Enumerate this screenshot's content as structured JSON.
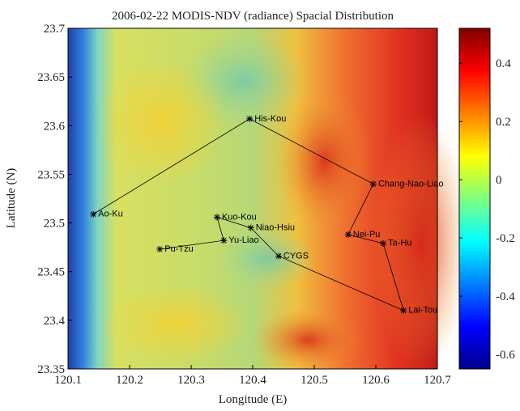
{
  "chart_data": {
    "type": "scatter",
    "title": "2006-02-22 MODIS-NDV (radiance) Spacial Distribution",
    "x_label": "Longitude (E)",
    "y_label": "Latitude (N)",
    "connected": true,
    "color": "#000000",
    "points": {
      "names": [
        "Pu-Tzu",
        "Yu-Liao",
        "Kuo-Kou",
        "Niao-Hsiu",
        "CYGS",
        "Lai-Tou",
        "Ta-Hu",
        "Nei-Pu",
        "Chang-Nao-Liao",
        "His-Kou",
        "Ao-Ku"
      ],
      "x": [
        120.249,
        120.353,
        120.342,
        120.397,
        120.442,
        120.645,
        120.612,
        120.555,
        120.596,
        120.395,
        120.141
      ],
      "y": [
        23.473,
        23.482,
        23.506,
        23.495,
        23.466,
        23.41,
        23.479,
        23.488,
        23.54,
        23.607,
        23.509
      ]
    },
    "xlim": [
      120.1,
      120.7
    ],
    "xticks": [
      120.1,
      120.2,
      120.3,
      120.4,
      120.5,
      120.6,
      120.7
    ],
    "ylim": [
      23.35,
      23.7
    ],
    "yticks": [
      23.35,
      23.4,
      23.45,
      23.5,
      23.55,
      23.6,
      23.65,
      23.7
    ],
    "colorbar": {
      "colormap": "jet",
      "lim": [
        -0.65,
        0.52
      ],
      "ticks": [
        -0.6,
        -0.4,
        -0.2,
        0,
        0.2,
        0.4
      ]
    }
  }
}
